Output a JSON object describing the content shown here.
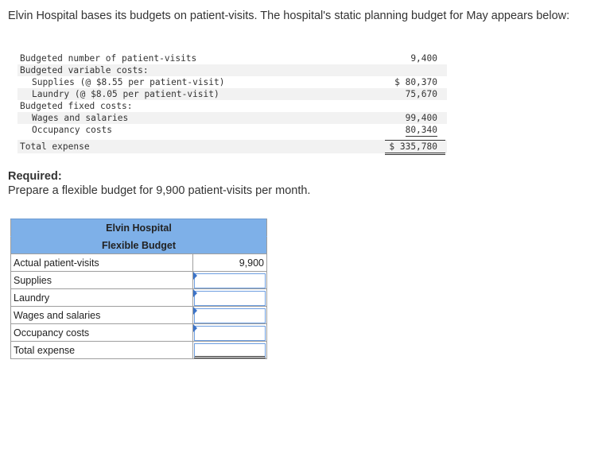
{
  "intro": "Elvin Hospital bases its budgets on patient-visits. The hospital's static planning budget for May appears below:",
  "static_budget": {
    "rows": [
      {
        "label": "Budgeted number of patient-visits",
        "amount": "9,400"
      },
      {
        "label": "Budgeted variable costs:",
        "amount": ""
      },
      {
        "label": "Supplies (@ $8.55 per patient-visit)",
        "amount": "$ 80,370"
      },
      {
        "label": "Laundry (@ $8.05 per patient-visit)",
        "amount": "75,670"
      },
      {
        "label": "Budgeted fixed costs:",
        "amount": ""
      },
      {
        "label": "Wages and salaries",
        "amount": "99,400"
      },
      {
        "label": "Occupancy costs",
        "amount": "80,340"
      },
      {
        "label": "Total expense",
        "amount": "$ 335,780"
      }
    ]
  },
  "required": {
    "title": "Required:",
    "text": "Prepare a flexible budget for 9,900 patient-visits per month."
  },
  "flexible_budget": {
    "title1": "Elvin Hospital",
    "title2": "Flexible Budget",
    "visits_label": "Actual patient-visits",
    "visits_value": "9,900",
    "rows": [
      {
        "label": "Supplies",
        "value": ""
      },
      {
        "label": "Laundry",
        "value": ""
      },
      {
        "label": "Wages and salaries",
        "value": ""
      },
      {
        "label": "Occupancy costs",
        "value": ""
      },
      {
        "label": "Total expense",
        "value": ""
      }
    ]
  }
}
